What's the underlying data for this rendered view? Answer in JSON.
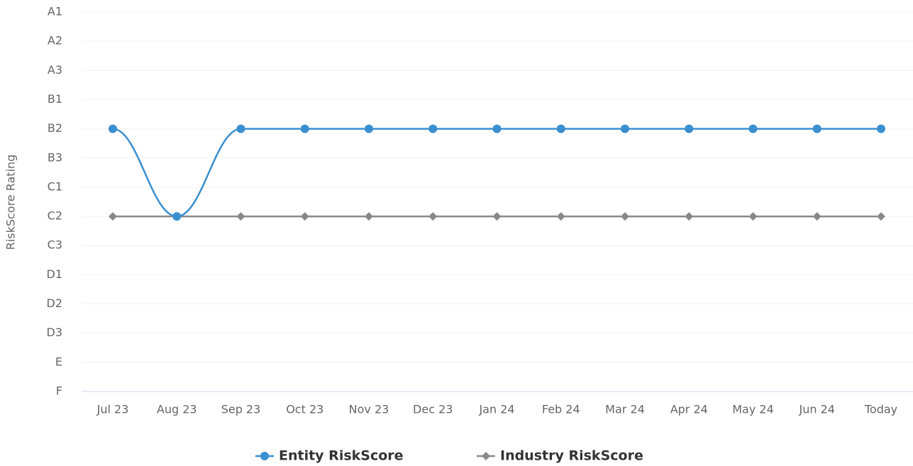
{
  "chart_data": {
    "type": "line",
    "y_axis_label": "RiskScore Rating",
    "ycategories": [
      "A1",
      "A2",
      "A3",
      "B1",
      "B2",
      "B3",
      "C1",
      "C2",
      "C3",
      "D1",
      "D2",
      "D3",
      "E",
      "F"
    ],
    "categories": [
      "Jul 23",
      "Aug 23",
      "Sep 23",
      "Oct 23",
      "Nov 23",
      "Dec 23",
      "Jan 24",
      "Feb 24",
      "Mar 24",
      "Apr 24",
      "May 24",
      "Jun 24",
      "Today"
    ],
    "series": [
      {
        "name": "Entity RiskScore",
        "color": "#3a8fd0",
        "marker": "circle",
        "smooth": true,
        "values": [
          "B2",
          "C2",
          "B2",
          "B2",
          "B2",
          "B2",
          "B2",
          "B2",
          "B2",
          "B2",
          "B2",
          "B2",
          "B2"
        ]
      },
      {
        "name": "Industry RiskScore",
        "color": "#888888",
        "marker": "diamond",
        "smooth": false,
        "values": [
          "C2",
          "C2",
          "C2",
          "C2",
          "C2",
          "C2",
          "C2",
          "C2",
          "C2",
          "C2",
          "C2",
          "C2",
          "C2"
        ]
      }
    ],
    "grid": true,
    "legend": "bottom"
  }
}
